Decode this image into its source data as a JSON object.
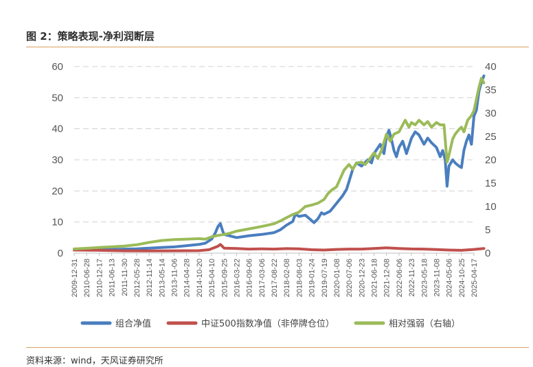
{
  "figure": {
    "title": "图 2：策略表现-净利润断层",
    "source": "资料来源：wind，天风证券研究所"
  },
  "chart_data": {
    "type": "line",
    "y_left": {
      "ylim": [
        0,
        60
      ],
      "ticks": [
        0,
        10,
        20,
        30,
        40,
        50,
        60
      ]
    },
    "y_right": {
      "ylim": [
        0,
        40
      ],
      "ticks": [
        0,
        5,
        10,
        15,
        20,
        25,
        30,
        35,
        40
      ]
    },
    "grid": "horizontal-dashed",
    "legend": "bottom",
    "x_ticks": [
      "2009-12-31",
      "2010-06-28",
      "2010-12-17",
      "2011-06-13",
      "2011-11-30",
      "2012-05-28",
      "2012-11-14",
      "2013-05-14",
      "2013-11-06",
      "2014-04-28",
      "2014-10-20",
      "2015-04-10",
      "2015-09-25",
      "2016-03-22",
      "2016-09-06",
      "2017-03-06",
      "2017-08-22",
      "2018-02-08",
      "2018-08-03",
      "2019-01-24",
      "2019-07-19",
      "2020-01-08",
      "2020-07-06",
      "2020-12-23",
      "2021-06-18",
      "2021-12-08",
      "2022-06-06",
      "2022-11-23",
      "2023-05-18",
      "2023-11-08",
      "2024-05-06",
      "2024-10-25",
      "2025-04-17"
    ],
    "series": [
      {
        "name": "组合净值",
        "axis": "left",
        "color": "#4a7ebf",
        "points": [
          [
            0,
            1.0
          ],
          [
            1,
            1.1
          ],
          [
            2,
            1.2
          ],
          [
            3,
            1.2
          ],
          [
            4,
            1.3
          ],
          [
            5,
            1.4
          ],
          [
            6,
            1.6
          ],
          [
            7,
            1.8
          ],
          [
            8,
            2.0
          ],
          [
            9,
            2.4
          ],
          [
            10,
            2.8
          ],
          [
            10.5,
            3.2
          ],
          [
            11,
            4.5
          ],
          [
            11.3,
            6.5
          ],
          [
            11.5,
            8.5
          ],
          [
            11.7,
            9.5
          ],
          [
            11.9,
            7.0
          ],
          [
            12,
            6.0
          ],
          [
            12.5,
            5.5
          ],
          [
            13,
            5.0
          ],
          [
            13.5,
            5.3
          ],
          [
            14,
            5.6
          ],
          [
            15,
            6.0
          ],
          [
            16,
            6.6
          ],
          [
            16.5,
            7.5
          ],
          [
            17,
            9.0
          ],
          [
            17.5,
            10.2
          ],
          [
            17.7,
            12.5
          ],
          [
            18,
            11.8
          ],
          [
            18.5,
            12.2
          ],
          [
            19,
            10.5
          ],
          [
            19.2,
            9.8
          ],
          [
            19.5,
            11.0
          ],
          [
            19.8,
            13.0
          ],
          [
            20,
            12.5
          ],
          [
            20.5,
            13.5
          ],
          [
            21,
            16.0
          ],
          [
            21.5,
            18.5
          ],
          [
            21.8,
            20.5
          ],
          [
            22,
            23.0
          ],
          [
            22.3,
            27.0
          ],
          [
            22.6,
            29.0
          ],
          [
            23,
            28.0
          ],
          [
            23.5,
            30.0
          ],
          [
            23.8,
            29.0
          ],
          [
            24,
            32.0
          ],
          [
            24.5,
            35.0
          ],
          [
            24.8,
            32.0
          ],
          [
            25,
            37.5
          ],
          [
            25.2,
            39.5
          ],
          [
            25.4,
            36.5
          ],
          [
            25.6,
            33.0
          ],
          [
            25.8,
            31.0
          ],
          [
            26,
            34.0
          ],
          [
            26.3,
            36.0
          ],
          [
            26.6,
            32.0
          ],
          [
            27,
            37.0
          ],
          [
            27.3,
            39.0
          ],
          [
            27.6,
            38.0
          ],
          [
            28,
            35.0
          ],
          [
            28.3,
            37.0
          ],
          [
            28.6,
            35.5
          ],
          [
            29,
            34.0
          ],
          [
            29.3,
            31.0
          ],
          [
            29.5,
            33.0
          ],
          [
            29.7,
            30.0
          ],
          [
            29.85,
            21.5
          ],
          [
            30,
            28.0
          ],
          [
            30.3,
            30.0
          ],
          [
            30.5,
            29.0
          ],
          [
            30.8,
            28.0
          ],
          [
            31,
            27.5
          ],
          [
            31.2,
            33.0
          ],
          [
            31.4,
            36.0
          ],
          [
            31.6,
            38.0
          ],
          [
            31.8,
            35.0
          ],
          [
            32,
            44.0
          ],
          [
            32.2,
            46.0
          ],
          [
            32.4,
            52.0
          ],
          [
            32.6,
            55.0
          ],
          [
            32.8,
            57.0
          ]
        ]
      },
      {
        "name": "中证500指数净值（非停牌仓位）",
        "axis": "left",
        "color": "#c0504d",
        "points": [
          [
            0,
            1.0
          ],
          [
            2,
            0.9
          ],
          [
            4,
            0.75
          ],
          [
            6,
            0.7
          ],
          [
            8,
            0.75
          ],
          [
            10,
            0.8
          ],
          [
            10.8,
            1.1
          ],
          [
            11.5,
            2.2
          ],
          [
            11.7,
            2.8
          ],
          [
            12,
            1.6
          ],
          [
            13,
            1.5
          ],
          [
            14,
            1.3
          ],
          [
            15,
            1.4
          ],
          [
            16,
            1.3
          ],
          [
            17,
            1.45
          ],
          [
            18,
            1.4
          ],
          [
            19,
            1.1
          ],
          [
            20,
            1.0
          ],
          [
            21,
            1.2
          ],
          [
            22,
            1.3
          ],
          [
            23,
            1.3
          ],
          [
            24,
            1.5
          ],
          [
            25,
            1.7
          ],
          [
            26,
            1.5
          ],
          [
            27,
            1.35
          ],
          [
            28,
            1.3
          ],
          [
            29,
            1.15
          ],
          [
            30,
            1.0
          ],
          [
            31,
            0.9
          ],
          [
            32,
            1.2
          ],
          [
            32.8,
            1.5
          ]
        ]
      },
      {
        "name": "相对强弱（右轴）",
        "axis": "right",
        "color": "#9bbb59",
        "points": [
          [
            0,
            0.9
          ],
          [
            1,
            1.05
          ],
          [
            2,
            1.2
          ],
          [
            3,
            1.35
          ],
          [
            4,
            1.5
          ],
          [
            5,
            1.8
          ],
          [
            6,
            2.3
          ],
          [
            7,
            2.7
          ],
          [
            8,
            2.9
          ],
          [
            9,
            3.0
          ],
          [
            10,
            3.1
          ],
          [
            10.5,
            3.0
          ],
          [
            11,
            3.5
          ],
          [
            11.5,
            3.8
          ],
          [
            12,
            4.0
          ],
          [
            12.5,
            4.3
          ],
          [
            13,
            4.7
          ],
          [
            14,
            5.2
          ],
          [
            15,
            5.7
          ],
          [
            16,
            6.3
          ],
          [
            16.5,
            6.9
          ],
          [
            17,
            7.6
          ],
          [
            17.5,
            8.3
          ],
          [
            18,
            8.8
          ],
          [
            18.5,
            10.0
          ],
          [
            19,
            10.3
          ],
          [
            19.5,
            10.7
          ],
          [
            20,
            11.5
          ],
          [
            20.3,
            12.7
          ],
          [
            20.6,
            13.5
          ],
          [
            21,
            14.2
          ],
          [
            21.3,
            16.0
          ],
          [
            21.6,
            17.8
          ],
          [
            22,
            19.0
          ],
          [
            22.3,
            18.0
          ],
          [
            22.6,
            19.3
          ],
          [
            23,
            19.5
          ],
          [
            23.3,
            19.0
          ],
          [
            23.6,
            20.0
          ],
          [
            24,
            21.5
          ],
          [
            24.3,
            20.3
          ],
          [
            24.6,
            22.0
          ],
          [
            25,
            25.5
          ],
          [
            25.3,
            24.0
          ],
          [
            25.6,
            25.5
          ],
          [
            26,
            26.0
          ],
          [
            26.3,
            27.5
          ],
          [
            26.5,
            28.5
          ],
          [
            26.8,
            27.0
          ],
          [
            27,
            28.0
          ],
          [
            27.3,
            27.5
          ],
          [
            27.6,
            28.5
          ],
          [
            28,
            27.5
          ],
          [
            28.3,
            28.2
          ],
          [
            28.6,
            27.0
          ],
          [
            29,
            28.0
          ],
          [
            29.3,
            27.5
          ],
          [
            29.6,
            27.5
          ],
          [
            29.85,
            19.5
          ],
          [
            30,
            21.0
          ],
          [
            30.3,
            24.5
          ],
          [
            30.5,
            25.5
          ],
          [
            30.8,
            26.5
          ],
          [
            31,
            27.0
          ],
          [
            31.2,
            26.0
          ],
          [
            31.5,
            28.5
          ],
          [
            31.8,
            29.5
          ],
          [
            32,
            30.5
          ],
          [
            32.2,
            33.0
          ],
          [
            32.4,
            35.5
          ],
          [
            32.6,
            37.5
          ],
          [
            32.8,
            36.5
          ]
        ]
      }
    ]
  }
}
